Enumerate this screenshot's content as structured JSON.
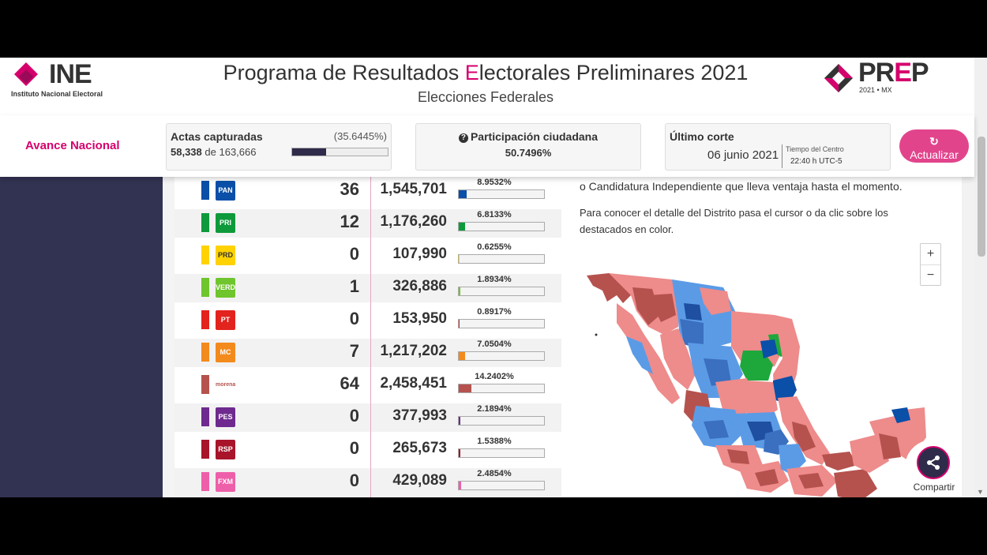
{
  "header": {
    "ine_logo": "INE",
    "ine_subtitle": "Instituto Nacional Electoral",
    "title_pre": "Programa de Resultados ",
    "title_e": "E",
    "title_post": "lectorales Preliminares 2021",
    "subtitle": "Elecciones Federales",
    "prep_logo_pr": "PR",
    "prep_logo_e": "E",
    "prep_logo_p": "P",
    "prep_year": "2021 • MX"
  },
  "summary": {
    "avance_label": "Avance Nacional",
    "actas_label": "Actas capturadas",
    "actas_pct": "(35.6445%)",
    "actas_count": "58,338",
    "actas_de": "de",
    "actas_total": "163,666",
    "actas_progress": 0.356445,
    "participacion_label": "Participación ciudadana",
    "participacion_value": "50.7496%",
    "corte_label": "Último corte",
    "corte_date": "06 junio 2021",
    "corte_tz_label": "Tiempo del Centro",
    "corte_time": "22:40 h UTC-5",
    "actualizar_label": "Actualizar"
  },
  "parties": [
    {
      "name": "PAN",
      "logo": "PAN",
      "color": "#0a4fa8",
      "seats": "36",
      "votes": "1,545,701",
      "pct": "8.9532%",
      "pct_value": 8.9532
    },
    {
      "name": "PRI",
      "logo": "PRI",
      "color": "#0e9a3a",
      "seats": "12",
      "votes": "1,176,260",
      "pct": "6.8133%",
      "pct_value": 6.8133
    },
    {
      "name": "PRD",
      "logo": "PRD",
      "color": "#ffd200",
      "seats": "0",
      "votes": "107,990",
      "pct": "0.6255%",
      "pct_value": 0.6255
    },
    {
      "name": "PVEM",
      "logo": "VERDE",
      "color": "#6fc52d",
      "seats": "1",
      "votes": "326,886",
      "pct": "1.8934%",
      "pct_value": 1.8934
    },
    {
      "name": "PT",
      "logo": "PT",
      "color": "#e3231d",
      "seats": "0",
      "votes": "153,950",
      "pct": "0.8917%",
      "pct_value": 0.8917
    },
    {
      "name": "MC",
      "logo": "MC",
      "color": "#f38a1c",
      "seats": "7",
      "votes": "1,217,202",
      "pct": "7.0504%",
      "pct_value": 7.0504
    },
    {
      "name": "MORENA",
      "logo": "morena",
      "color": "#b5524e",
      "seats": "64",
      "votes": "2,458,451",
      "pct": "14.2402%",
      "pct_value": 14.2402
    },
    {
      "name": "PES",
      "logo": "PES",
      "color": "#6e2a8e",
      "seats": "0",
      "votes": "377,993",
      "pct": "2.1894%",
      "pct_value": 2.1894
    },
    {
      "name": "RSP",
      "logo": "RSP",
      "color": "#a8152b",
      "seats": "0",
      "votes": "265,673",
      "pct": "1.5388%",
      "pct_value": 1.5388
    },
    {
      "name": "FXM",
      "logo": "FXM",
      "color": "#ee5fa9",
      "seats": "0",
      "votes": "429,089",
      "pct": "2.4854%",
      "pct_value": 2.4854
    }
  ],
  "map_panel": {
    "info_line": "o Candidatura Independiente que lleva ventaja hasta el momento.",
    "info_detail": "Para conocer el detalle del Distrito pasa el cursor o da clic sobre los destacados en color.",
    "zoom_in": "+",
    "zoom_out": "−"
  },
  "share": {
    "label": "Compartir"
  },
  "icons": {
    "refresh": "refresh-icon",
    "question": "question-circle-icon",
    "share": "share-icon"
  }
}
